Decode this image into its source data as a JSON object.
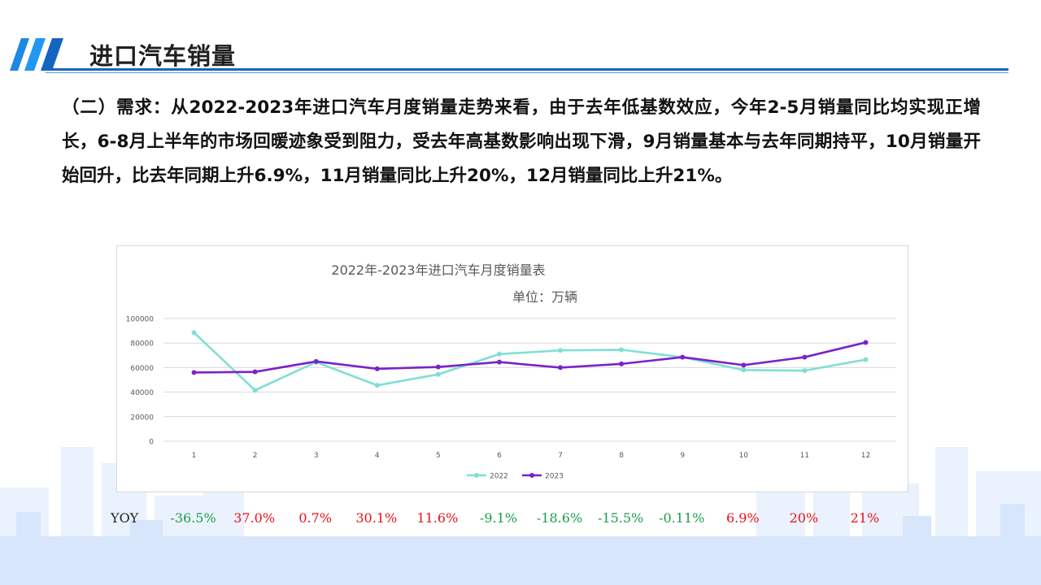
{
  "page": {
    "title": "进口汽车销量",
    "paragraph": "（二）需求：从2022-2023年进口汽车月度销量走势来看，由于去年低基数效应，今年2-5月销量同比均实现正增长，6-8月上半年的市场回暖迹象受到阻力，受去年高基数影响出现下滑，9月销量基本与去年同期持平，10月销量开始回升，比去年同期上升6.9%，11月销量同比上升20%，12月销量同比上升21%。"
  },
  "colors": {
    "accent": "#1565c0",
    "series_2022": "#7ee0d2",
    "series_2023": "#7b22c9",
    "yoy_positive": "#e8101a",
    "yoy_negative": "#1a9e4a"
  },
  "chart_data": {
    "type": "line",
    "title": "2022年-2023年进口汽车月度销量表",
    "subtitle": "单位：万辆",
    "categories": [
      "1",
      "2",
      "3",
      "4",
      "5",
      "6",
      "7",
      "8",
      "9",
      "10",
      "11",
      "12"
    ],
    "yticks": [
      "0",
      "20000",
      "40000",
      "60000",
      "80000",
      "100000"
    ],
    "ylim": [
      0,
      100000
    ],
    "grid": true,
    "legend_position": "bottom",
    "series": [
      {
        "name": "2022",
        "values": [
          88500,
          41500,
          64500,
          45500,
          54500,
          71000,
          74000,
          74500,
          68500,
          58000,
          57500,
          66500
        ]
      },
      {
        "name": "2023",
        "values": [
          56000,
          56500,
          65000,
          59000,
          60500,
          64500,
          60000,
          63000,
          68500,
          62000,
          68500,
          80500
        ]
      }
    ]
  },
  "yoy": {
    "label": "YOY",
    "values": [
      {
        "text": "-36.5%",
        "sign": "negative"
      },
      {
        "text": "37.0%",
        "sign": "positive"
      },
      {
        "text": "0.7%",
        "sign": "positive"
      },
      {
        "text": "30.1%",
        "sign": "positive"
      },
      {
        "text": "11.6%",
        "sign": "positive"
      },
      {
        "text": "-9.1%",
        "sign": "negative"
      },
      {
        "text": "-18.6%",
        "sign": "negative"
      },
      {
        "text": "-15.5%",
        "sign": "negative"
      },
      {
        "text": "-0.11%",
        "sign": "negative"
      },
      {
        "text": "6.9%",
        "sign": "positive"
      },
      {
        "text": "20%",
        "sign": "positive"
      },
      {
        "text": "21%",
        "sign": "positive"
      }
    ]
  }
}
